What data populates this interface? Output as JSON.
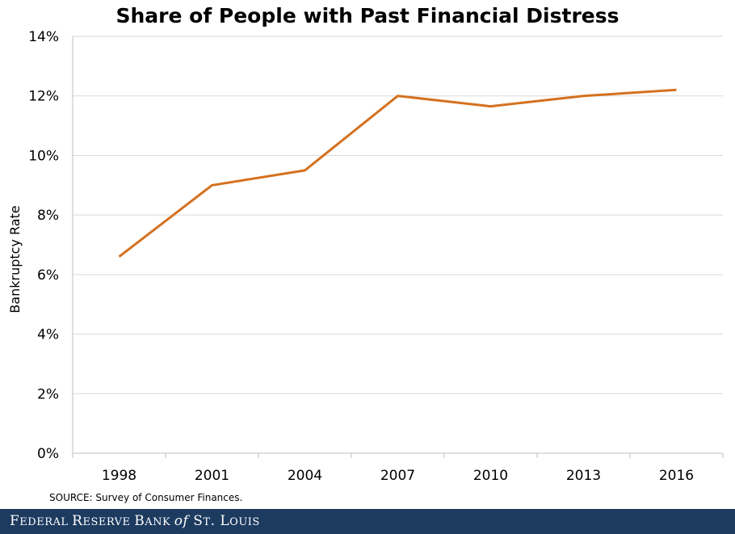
{
  "chart_data": {
    "type": "line",
    "title": "Share of People with Past Financial Distress",
    "xlabel": "",
    "ylabel": "Bankruptcy Rate",
    "categories": [
      "1998",
      "2001",
      "2004",
      "2007",
      "2010",
      "2013",
      "2016"
    ],
    "series": [
      {
        "values": [
          6.6,
          9.0,
          9.5,
          12.0,
          11.65,
          12.0,
          12.2
        ],
        "color": "#d4711f"
      }
    ],
    "ylim": [
      0,
      14
    ],
    "yticks": [
      0,
      2,
      4,
      6,
      8,
      10,
      12,
      14
    ],
    "ytick_suffix": "%",
    "grid": true,
    "legend": "none"
  },
  "source": "SOURCE: Survey  of Consumer Finances.",
  "footer": {
    "parts": [
      {
        "text": "F",
        "style": "normal"
      },
      {
        "text": "EDERAL ",
        "style": "sc"
      },
      {
        "text": "R",
        "style": "normal"
      },
      {
        "text": "ESERVE ",
        "style": "sc"
      },
      {
        "text": "B",
        "style": "normal"
      },
      {
        "text": "ANK ",
        "style": "sc"
      },
      {
        "text": "of",
        "style": "it"
      },
      {
        "text": " S",
        "style": "normal"
      },
      {
        "text": "T",
        "style": "sc"
      },
      {
        "text": ". L",
        "style": "normal"
      },
      {
        "text": "OUIS",
        "style": "sc"
      }
    ],
    "background": "#1d3a5f"
  }
}
